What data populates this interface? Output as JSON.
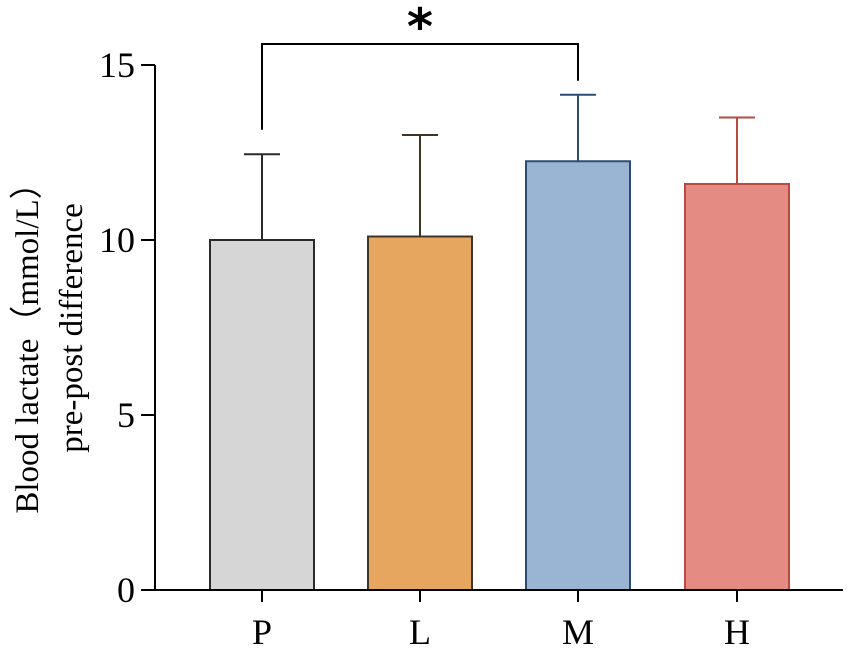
{
  "chart_data": {
    "type": "bar",
    "categories": [
      "P",
      "L",
      "M",
      "H"
    ],
    "values": [
      10.0,
      10.1,
      12.25,
      11.6
    ],
    "error_upper": [
      12.45,
      13.0,
      14.15,
      13.5
    ],
    "colors": {
      "fill": [
        "#d6d6d6",
        "#e6a660",
        "#9ab4d4",
        "#e48c84"
      ],
      "stroke": [
        "#2a2a2a",
        "#3e3526",
        "#2c4d72",
        "#b84a40"
      ]
    },
    "ylabel_lines": [
      "Blood lactate（mmol/L）",
      "pre-post difference"
    ],
    "ylim": [
      0,
      15
    ],
    "yticks": [
      0,
      5,
      10,
      15
    ],
    "ytick_labels": [
      "0",
      "5",
      "10",
      "15"
    ],
    "xlabel": "",
    "title": "",
    "significance": {
      "between": [
        "P",
        "M"
      ],
      "label": "*"
    },
    "grid": false,
    "legend": "none"
  }
}
